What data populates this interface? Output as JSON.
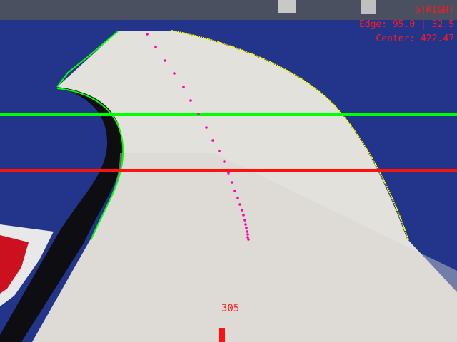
{
  "hud": {
    "mode": "STRIGHT",
    "edge": "Edge: 95.0 | 32.5",
    "center": "Center: 422.47"
  },
  "steering": {
    "value": "305"
  },
  "overlay": {
    "colors": {
      "left_edge": "#00ff00",
      "right_edge": "#ffff00",
      "center_path": "#ff00aa",
      "upper_scanline": "#00ff00",
      "lower_scanline": "#ff1010",
      "hud_text": "#ff1a1a"
    }
  }
}
